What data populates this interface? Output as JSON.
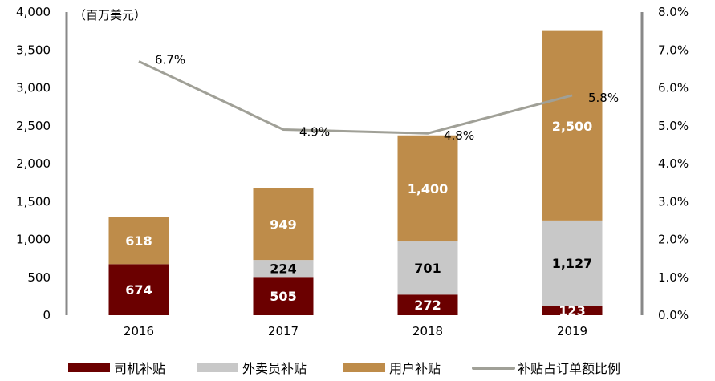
{
  "chart_data": {
    "type": "bar",
    "stacked": true,
    "unit_label": "（百万美元）",
    "categories": [
      "2016",
      "2017",
      "2018",
      "2019"
    ],
    "series": [
      {
        "name": "司机补贴",
        "values": [
          674,
          505,
          272,
          123
        ],
        "labels": [
          "674",
          "505",
          "272",
          "123"
        ],
        "color": "#6b0000"
      },
      {
        "name": "外卖员补贴",
        "values": [
          0,
          224,
          701,
          1127
        ],
        "labels": [
          "",
          "224",
          "701",
          "1,127"
        ],
        "color": "#c8c8c8"
      },
      {
        "name": "用户补贴",
        "values": [
          618,
          949,
          1400,
          2500
        ],
        "labels": [
          "618",
          "949",
          "1,400",
          "2,500"
        ],
        "color": "#be8c4a"
      }
    ],
    "line_series": {
      "name": "补贴占订单额比例",
      "values": [
        6.7,
        4.9,
        4.8,
        5.8
      ],
      "labels": [
        "6.7%",
        "4.9%",
        "4.8%",
        "5.8%"
      ],
      "color": "#a0a097",
      "axis": "right"
    },
    "ylim": [
      0,
      4000
    ],
    "yticks": [
      "0",
      "500",
      "1,000",
      "1,500",
      "2,000",
      "2,500",
      "3,000",
      "3,500",
      "4,000"
    ],
    "y2lim": [
      0,
      8
    ],
    "y2ticks": [
      "0.0%",
      "1.0%",
      "2.0%",
      "3.0%",
      "4.0%",
      "5.0%",
      "6.0%",
      "7.0%",
      "8.0%"
    ],
    "legend_position": "bottom"
  }
}
